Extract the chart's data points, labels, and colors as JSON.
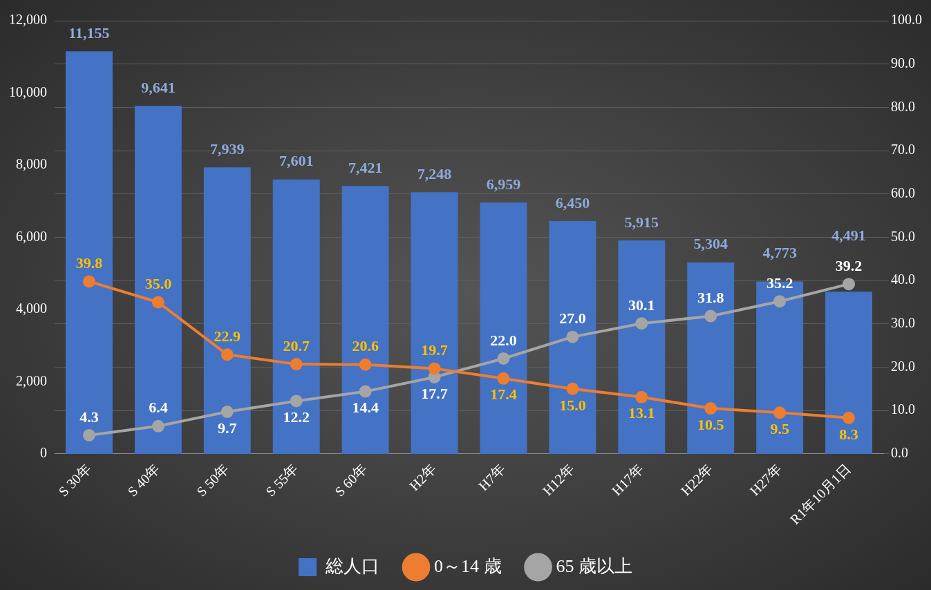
{
  "chart_data": {
    "type": "bar",
    "categories": [
      "S 30年",
      "S 40年",
      "S 50年",
      "S 55年",
      "S 60年",
      "H2年",
      "H7年",
      "H12年",
      "H17年",
      "H22年",
      "H27年",
      "R1年10月1日"
    ],
    "series": [
      {
        "name": "総人口",
        "color": "#4472c4",
        "values": [
          11155,
          9641,
          7939,
          7601,
          7421,
          7248,
          6959,
          6450,
          5915,
          5304,
          4773,
          4491
        ],
        "value_labels": [
          "11,155",
          "9,641",
          "7,939",
          "7,601",
          "7,421",
          "7,248",
          "6,959",
          "6,450",
          "5,915",
          "5,304",
          "4,773",
          "4,491"
        ]
      },
      {
        "name": "0～14 歳",
        "type": "line",
        "axis": "y2",
        "color": "#ed7d31",
        "values": [
          39.8,
          35.0,
          22.9,
          20.7,
          20.6,
          19.7,
          17.4,
          15.0,
          13.1,
          10.5,
          9.5,
          8.3
        ],
        "value_labels": [
          "39.8",
          "35.0",
          "22.9",
          "20.7",
          "20.6",
          "19.7",
          "17.4",
          "15.0",
          "13.1",
          "10.5",
          "9.5",
          "8.3"
        ]
      },
      {
        "name": "65 歳以上",
        "type": "line",
        "axis": "y2",
        "color": "#a5a5a5",
        "values": [
          4.3,
          6.4,
          9.7,
          12.2,
          14.4,
          17.7,
          22.0,
          27.0,
          30.1,
          31.8,
          35.2,
          39.2
        ],
        "value_labels": [
          "4.3",
          "6.4",
          "9.7",
          "12.2",
          "14.4",
          "17.7",
          "22.0",
          "27.0",
          "30.1",
          "31.8",
          "35.2",
          "39.2"
        ]
      }
    ],
    "ylim": [
      0,
      12000
    ],
    "yticks": [
      0,
      {
        "value": 2000,
        "label": "2,000"
      },
      {
        "value": 4000,
        "label": "4,000"
      },
      {
        "value": 6000,
        "label": "6,000"
      },
      {
        "value": 8000,
        "label": "8,000"
      },
      {
        "value": 10000,
        "label": "10,000"
      },
      {
        "value": 12000,
        "label": "12,000"
      }
    ],
    "y2lim": [
      0,
      100
    ],
    "y2ticks": [
      {
        "value": 0,
        "label": "0.0"
      },
      {
        "value": 10,
        "label": "10.0"
      },
      {
        "value": 20,
        "label": "20.0"
      },
      {
        "value": 30,
        "label": "30.0"
      },
      {
        "value": 40,
        "label": "40.0"
      },
      {
        "value": 50,
        "label": "50.0"
      },
      {
        "value": 60,
        "label": "60.0"
      },
      {
        "value": 70,
        "label": "70.0"
      },
      {
        "value": 80,
        "label": "80.0"
      },
      {
        "value": 90,
        "label": "90.0"
      },
      {
        "value": 100,
        "label": "100.0"
      }
    ],
    "grid": true,
    "legend": "bottom",
    "marker": "circle",
    "line_style": "solid"
  }
}
